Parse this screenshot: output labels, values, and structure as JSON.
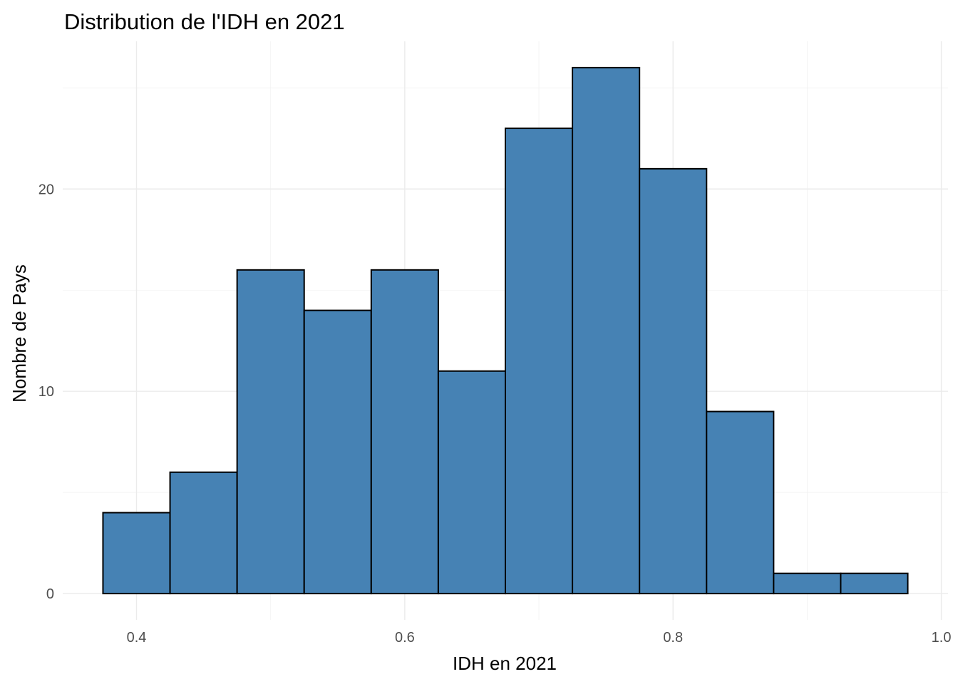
{
  "chart_data": {
    "type": "bar",
    "subtype": "histogram",
    "title": "Distribution de l'IDH en 2021",
    "xlabel": "IDH en 2021",
    "ylabel": "Nombre de Pays",
    "xlim": [
      0.345,
      1.005
    ],
    "ylim": [
      -1.3,
      27.3
    ],
    "x_ticks": [
      0.4,
      0.6,
      0.8,
      1.0
    ],
    "x_tick_labels": [
      "0.4",
      "0.6",
      "0.8",
      "1.0"
    ],
    "y_ticks": [
      0,
      10,
      20
    ],
    "y_tick_labels": [
      "0",
      "10",
      "20"
    ],
    "grid": true,
    "bins": [
      {
        "x0": 0.375,
        "x1": 0.425,
        "count": 4
      },
      {
        "x0": 0.425,
        "x1": 0.475,
        "count": 6
      },
      {
        "x0": 0.475,
        "x1": 0.525,
        "count": 16
      },
      {
        "x0": 0.525,
        "x1": 0.575,
        "count": 14
      },
      {
        "x0": 0.575,
        "x1": 0.625,
        "count": 16
      },
      {
        "x0": 0.625,
        "x1": 0.675,
        "count": 11
      },
      {
        "x0": 0.675,
        "x1": 0.725,
        "count": 23
      },
      {
        "x0": 0.725,
        "x1": 0.775,
        "count": 26
      },
      {
        "x0": 0.775,
        "x1": 0.825,
        "count": 21
      },
      {
        "x0": 0.825,
        "x1": 0.875,
        "count": 9
      },
      {
        "x0": 0.875,
        "x1": 0.925,
        "count": 1
      },
      {
        "x0": 0.925,
        "x1": 0.975,
        "count": 1
      }
    ],
    "bar_fill": "#4682b4",
    "bar_outline": "#000000"
  }
}
